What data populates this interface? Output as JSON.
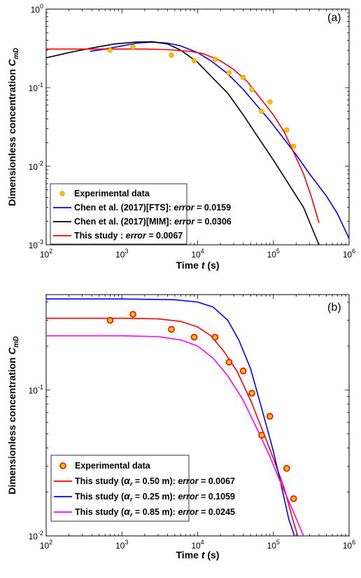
{
  "chart_data": [
    {
      "type": "line",
      "panel_label": "(a)",
      "xlabel_main": "Time ",
      "xlabel_italic": "t",
      "xlabel_unit": " (s)",
      "ylabel_main": "Dimensionless concentration ",
      "ylabel_sym": "C",
      "ylabel_sub": "mD",
      "xscale": "log",
      "yscale": "log",
      "xlim": [
        100,
        1000000
      ],
      "ylim": [
        0.001,
        1
      ],
      "x_ticks": [
        {
          "v": 100,
          "exp": "2"
        },
        {
          "v": 1000,
          "exp": "3"
        },
        {
          "v": 10000,
          "exp": "4"
        },
        {
          "v": 100000,
          "exp": "5"
        },
        {
          "v": 1000000,
          "exp": "6"
        }
      ],
      "y_ticks": [
        {
          "v": 0.001,
          "exp": "-3"
        },
        {
          "v": 0.01,
          "exp": "-2"
        },
        {
          "v": 0.1,
          "exp": "-1"
        },
        {
          "v": 1,
          "exp": "0"
        }
      ],
      "tick_base": "10",
      "legend_placement": "bottom-left",
      "experimental": {
        "name": "Experimental data",
        "color": "#FFC000",
        "edge": "#E0A000",
        "points": [
          [
            700,
            0.3
          ],
          [
            1400,
            0.33
          ],
          [
            4500,
            0.26
          ],
          [
            9000,
            0.22
          ],
          [
            17000,
            0.23
          ],
          [
            26000,
            0.155
          ],
          [
            40000,
            0.135
          ],
          [
            52000,
            0.095
          ],
          [
            70000,
            0.05
          ],
          [
            90000,
            0.066
          ],
          [
            150000,
            0.029
          ],
          [
            185000,
            0.018
          ]
        ]
      },
      "series": [
        {
          "legend_name": "Chen et al. (2017)[FTS]: ",
          "legend_err_label": "error",
          "legend_err_value": " = 0.0159",
          "color": "#0000FF",
          "points": [
            [
              380,
              0.29
            ],
            [
              600,
              0.31
            ],
            [
              1000,
              0.34
            ],
            [
              1600,
              0.37
            ],
            [
              2500,
              0.38
            ],
            [
              4000,
              0.37
            ],
            [
              6000,
              0.34
            ],
            [
              10000,
              0.28
            ],
            [
              15000,
              0.22
            ],
            [
              25000,
              0.15
            ],
            [
              40000,
              0.095
            ],
            [
              60000,
              0.06
            ],
            [
              90000,
              0.038
            ],
            [
              130000,
              0.024
            ],
            [
              200000,
              0.014
            ],
            [
              300000,
              0.008
            ],
            [
              500000,
              0.0042
            ],
            [
              700000,
              0.0025
            ],
            [
              1000000,
              0.0012
            ]
          ]
        },
        {
          "legend_name": "Chen et al. (2017)[MIM]: ",
          "legend_err_label": "error",
          "legend_err_value": " = 0.0306",
          "color": "#000000",
          "points": [
            [
              100,
              0.24
            ],
            [
              200,
              0.28
            ],
            [
              400,
              0.32
            ],
            [
              800,
              0.36
            ],
            [
              1500,
              0.38
            ],
            [
              2500,
              0.385
            ],
            [
              4000,
              0.36
            ],
            [
              6000,
              0.3
            ],
            [
              10000,
              0.21
            ],
            [
              15000,
              0.14
            ],
            [
              25000,
              0.085
            ],
            [
              40000,
              0.045
            ],
            [
              60000,
              0.025
            ],
            [
              100000,
              0.012
            ],
            [
              150000,
              0.0065
            ],
            [
              250000,
              0.003
            ],
            [
              400000,
              0.001
            ]
          ]
        },
        {
          "legend_name": "This study : ",
          "legend_err_label": "error",
          "legend_err_value": " = 0.0067",
          "color": "#FF0000",
          "points": [
            [
              100,
              0.31
            ],
            [
              400,
              0.31
            ],
            [
              1000,
              0.31
            ],
            [
              2000,
              0.31
            ],
            [
              4000,
              0.305
            ],
            [
              8000,
              0.29
            ],
            [
              12000,
              0.27
            ],
            [
              20000,
              0.22
            ],
            [
              30000,
              0.17
            ],
            [
              45000,
              0.12
            ],
            [
              70000,
              0.07
            ],
            [
              100000,
              0.045
            ],
            [
              140000,
              0.027
            ],
            [
              180000,
              0.016
            ],
            [
              250000,
              0.008
            ],
            [
              320000,
              0.004
            ],
            [
              400000,
              0.0019
            ]
          ]
        }
      ]
    },
    {
      "type": "line",
      "panel_label": "(b)",
      "xlabel_main": "Time ",
      "xlabel_italic": "t",
      "xlabel_unit": " (s)",
      "ylabel_main": "Dimensionless concentration ",
      "ylabel_sym": "C",
      "ylabel_sub": "mD",
      "xscale": "log",
      "yscale": "log",
      "xlim": [
        100,
        1000000
      ],
      "ylim": [
        0.01,
        0.45
      ],
      "x_ticks": [
        {
          "v": 100,
          "exp": "2"
        },
        {
          "v": 1000,
          "exp": "3"
        },
        {
          "v": 10000,
          "exp": "4"
        },
        {
          "v": 100000,
          "exp": "5"
        },
        {
          "v": 1000000,
          "exp": "6"
        }
      ],
      "y_ticks": [
        {
          "v": 0.01,
          "exp": "-2"
        },
        {
          "v": 0.1,
          "exp": "-1"
        }
      ],
      "tick_base": "10",
      "legend_placement": "bottom-left",
      "experimental": {
        "name": "Experimental data",
        "color": "#FFC000",
        "edge": "#FF0000",
        "points": [
          [
            700,
            0.3
          ],
          [
            1400,
            0.33
          ],
          [
            4500,
            0.26
          ],
          [
            9000,
            0.23
          ],
          [
            17000,
            0.23
          ],
          [
            26000,
            0.155
          ],
          [
            40000,
            0.135
          ],
          [
            52000,
            0.095
          ],
          [
            70000,
            0.049
          ],
          [
            90000,
            0.066
          ],
          [
            150000,
            0.029
          ],
          [
            185000,
            0.018
          ]
        ]
      },
      "series": [
        {
          "legend_pre": "This study (",
          "legend_alpha": "α",
          "legend_sub": "r",
          "legend_eq": " = 0.50 m): ",
          "legend_err_label": "error",
          "legend_err_value": " = 0.0067",
          "color": "#FF0000",
          "points": [
            [
              100,
              0.31
            ],
            [
              1000,
              0.31
            ],
            [
              3000,
              0.307
            ],
            [
              6000,
              0.295
            ],
            [
              10000,
              0.27
            ],
            [
              15000,
              0.235
            ],
            [
              22000,
              0.185
            ],
            [
              33000,
              0.135
            ],
            [
              50000,
              0.085
            ],
            [
              75000,
              0.05
            ],
            [
              100000,
              0.034
            ],
            [
              140000,
              0.021
            ],
            [
              180000,
              0.013
            ],
            [
              210000,
              0.01
            ]
          ]
        },
        {
          "legend_pre": "This study (",
          "legend_alpha": "α",
          "legend_sub": "r",
          "legend_eq": " = 0.25 m): ",
          "legend_err_label": "error",
          "legend_err_value": " = 0.1059",
          "color": "#0000FF",
          "points": [
            [
              100,
              0.42
            ],
            [
              1000,
              0.42
            ],
            [
              5000,
              0.415
            ],
            [
              10000,
              0.4
            ],
            [
              16000,
              0.37
            ],
            [
              25000,
              0.3
            ],
            [
              35000,
              0.22
            ],
            [
              50000,
              0.14
            ],
            [
              70000,
              0.075
            ],
            [
              100000,
              0.038
            ],
            [
              130000,
              0.021
            ],
            [
              160000,
              0.013
            ],
            [
              190000,
              0.01
            ]
          ]
        },
        {
          "legend_pre": "This study (",
          "legend_alpha": "α",
          "legend_sub": "r",
          "legend_eq": " = 0.85 m): ",
          "legend_err_label": "error",
          "legend_err_value": " = 0.0245",
          "color": "#FF00FF",
          "points": [
            [
              100,
              0.235
            ],
            [
              1000,
              0.235
            ],
            [
              3000,
              0.232
            ],
            [
              6000,
              0.22
            ],
            [
              10000,
              0.2
            ],
            [
              16000,
              0.165
            ],
            [
              25000,
              0.125
            ],
            [
              40000,
              0.085
            ],
            [
              60000,
              0.055
            ],
            [
              90000,
              0.035
            ],
            [
              130000,
              0.022
            ],
            [
              180000,
              0.015
            ],
            [
              250000,
              0.01
            ]
          ]
        }
      ]
    }
  ]
}
